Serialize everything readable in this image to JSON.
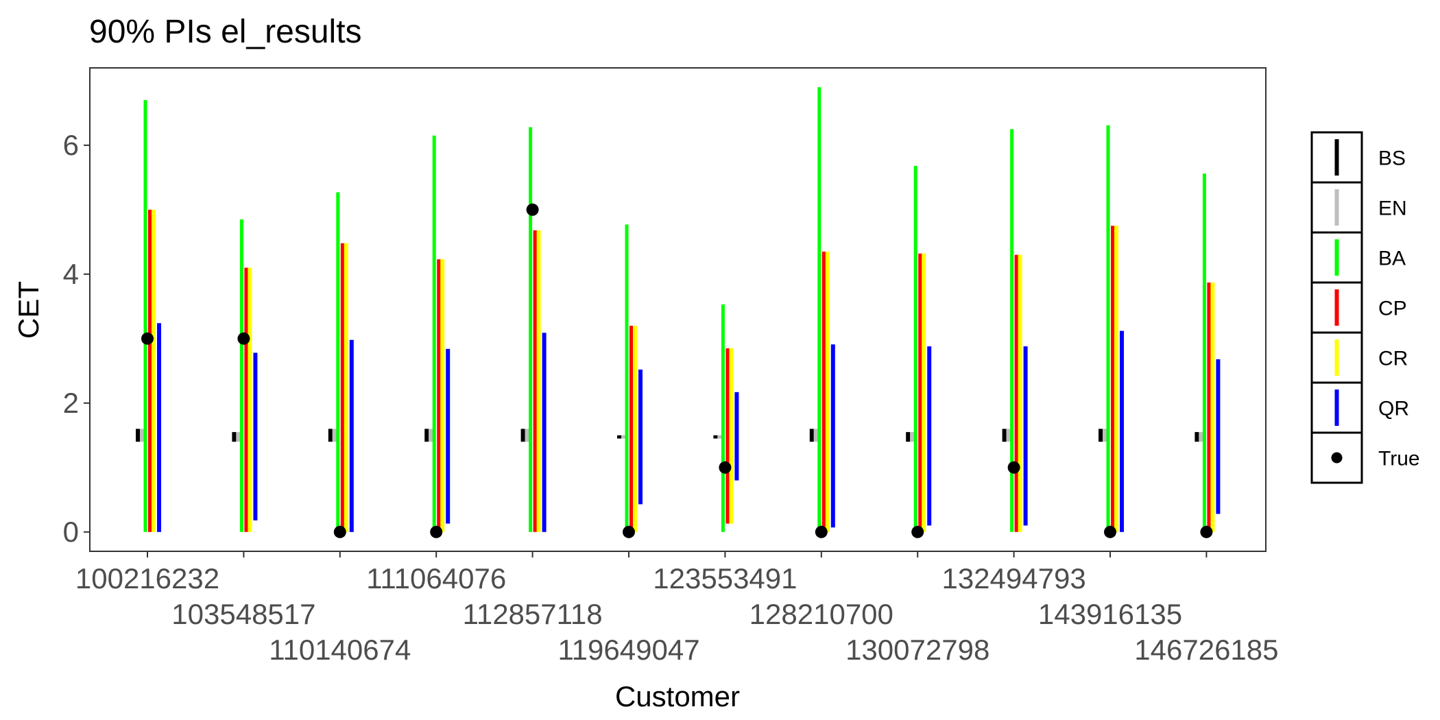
{
  "chart_data": {
    "type": "errorbar",
    "title": "90% PIs el_results",
    "xlabel": "Customer",
    "ylabel": "CET",
    "ylim": [
      -0.3,
      7.2
    ],
    "yticks": [
      0,
      2,
      4,
      6
    ],
    "grid": false,
    "legend_position": "right",
    "categories": [
      "100216232",
      "103548517",
      "110140674",
      "111064076",
      "112857118",
      "119649047",
      "123553491",
      "128210700",
      "130072798",
      "132494793",
      "143916135",
      "146726185"
    ],
    "series": [
      {
        "name": "BS",
        "color": "#000000",
        "lower": [
          1.4,
          1.4,
          1.4,
          1.4,
          1.4,
          1.45,
          1.45,
          1.4,
          1.4,
          1.4,
          1.4,
          1.4
        ],
        "upper": [
          1.6,
          1.55,
          1.6,
          1.6,
          1.6,
          1.5,
          1.5,
          1.6,
          1.55,
          1.6,
          1.6,
          1.55
        ]
      },
      {
        "name": "EN",
        "color": "#bebebe",
        "lower": [
          1.4,
          1.4,
          1.4,
          1.4,
          1.4,
          1.45,
          1.45,
          1.4,
          1.4,
          1.4,
          1.4,
          1.4
        ],
        "upper": [
          1.6,
          1.55,
          1.6,
          1.6,
          1.6,
          1.5,
          1.5,
          1.6,
          1.55,
          1.6,
          1.6,
          1.55
        ]
      },
      {
        "name": "BA",
        "color": "#00ff00",
        "lower": [
          0,
          0,
          0,
          0,
          0,
          0,
          0,
          0,
          0,
          0,
          0,
          0
        ],
        "upper": [
          6.7,
          4.85,
          5.27,
          6.15,
          6.28,
          4.77,
          3.53,
          6.9,
          5.68,
          6.25,
          6.31,
          5.56
        ]
      },
      {
        "name": "CP",
        "color": "#ff0000",
        "lower": [
          0,
          0,
          0,
          0,
          0,
          0,
          0.13,
          0,
          0,
          0,
          0,
          0
        ],
        "upper": [
          5.0,
          4.1,
          4.48,
          4.23,
          4.68,
          3.2,
          2.85,
          4.35,
          4.32,
          4.3,
          4.75,
          3.87
        ]
      },
      {
        "name": "CR",
        "color": "#ffff00",
        "lower": [
          0,
          0,
          0,
          0,
          0,
          0,
          0.13,
          0,
          0,
          0,
          0,
          0
        ],
        "upper": [
          5.0,
          4.1,
          4.48,
          4.23,
          4.68,
          3.2,
          2.85,
          4.35,
          4.32,
          4.3,
          4.75,
          3.87
        ]
      },
      {
        "name": "QR",
        "color": "#0000ff",
        "lower": [
          0,
          0.18,
          0,
          0.13,
          0,
          0.43,
          0.8,
          0.07,
          0.1,
          0.1,
          0,
          0.28
        ],
        "upper": [
          3.24,
          2.78,
          2.98,
          2.84,
          3.09,
          2.52,
          2.17,
          2.91,
          2.88,
          2.88,
          3.12,
          2.68
        ]
      }
    ],
    "true_values": {
      "name": "True",
      "values": [
        3,
        3,
        0,
        0,
        5,
        0,
        1,
        0,
        0,
        1,
        0,
        0
      ]
    }
  }
}
